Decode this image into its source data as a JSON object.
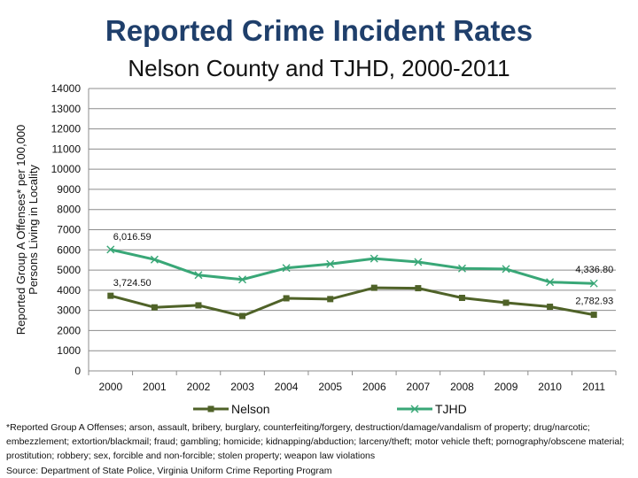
{
  "slide": {
    "title": "Reported Crime Incident Rates",
    "subtitle": "Nelson County and TJHD, 2000-2011",
    "footnote": "*Reported Group A Offenses; arson, assault, bribery, burglary, counterfeiting/forgery, destruction/damage/vandalism of property; drug/narcotic; embezzlement; extortion/blackmail; fraud; gambling; homicide; kidnapping/abduction; larceny/theft; motor vehicle theft; pornography/obscene material; prostitution; robbery; sex, forcible and non-forcible; stolen property; weapon law violations",
    "source": "Source: Department of State Police, Virginia Uniform Crime Reporting Program"
  },
  "chart_data": {
    "type": "line",
    "title": "Reported Crime Incident Rates",
    "subtitle": "Nelson County and TJHD, 2000-2011",
    "xlabel": "",
    "ylabel": "Reported Group A Offenses* per 100,000 Persons Living in Locality",
    "ylim": [
      0,
      14000
    ],
    "ytick_step": 1000,
    "grid": true,
    "legend_position": "bottom",
    "categories": [
      "2000",
      "2001",
      "2002",
      "2003",
      "2004",
      "2005",
      "2006",
      "2007",
      "2008",
      "2009",
      "2010",
      "2011"
    ],
    "series": [
      {
        "name": "Nelson",
        "color": "#4f6228",
        "marker": "square",
        "values": [
          3724.5,
          3150,
          3250,
          2720,
          3600,
          3560,
          4120,
          4100,
          3620,
          3380,
          3180,
          2782.93
        ]
      },
      {
        "name": "TJHD",
        "color": "#39a777",
        "marker": "x",
        "values": [
          6016.59,
          5520,
          4750,
          4530,
          5100,
          5300,
          5570,
          5400,
          5080,
          5050,
          4400,
          4336.8
        ]
      }
    ],
    "annotations": [
      {
        "series": "TJHD",
        "category": "2000",
        "text": "6,016.59",
        "anchor": "right"
      },
      {
        "series": "TJHD",
        "category": "2011",
        "text": "4,336.80",
        "anchor": "above"
      },
      {
        "series": "Nelson",
        "category": "2000",
        "text": "3,724.50",
        "anchor": "right"
      },
      {
        "series": "Nelson",
        "category": "2011",
        "text": "2,782.93",
        "anchor": "above"
      }
    ]
  }
}
